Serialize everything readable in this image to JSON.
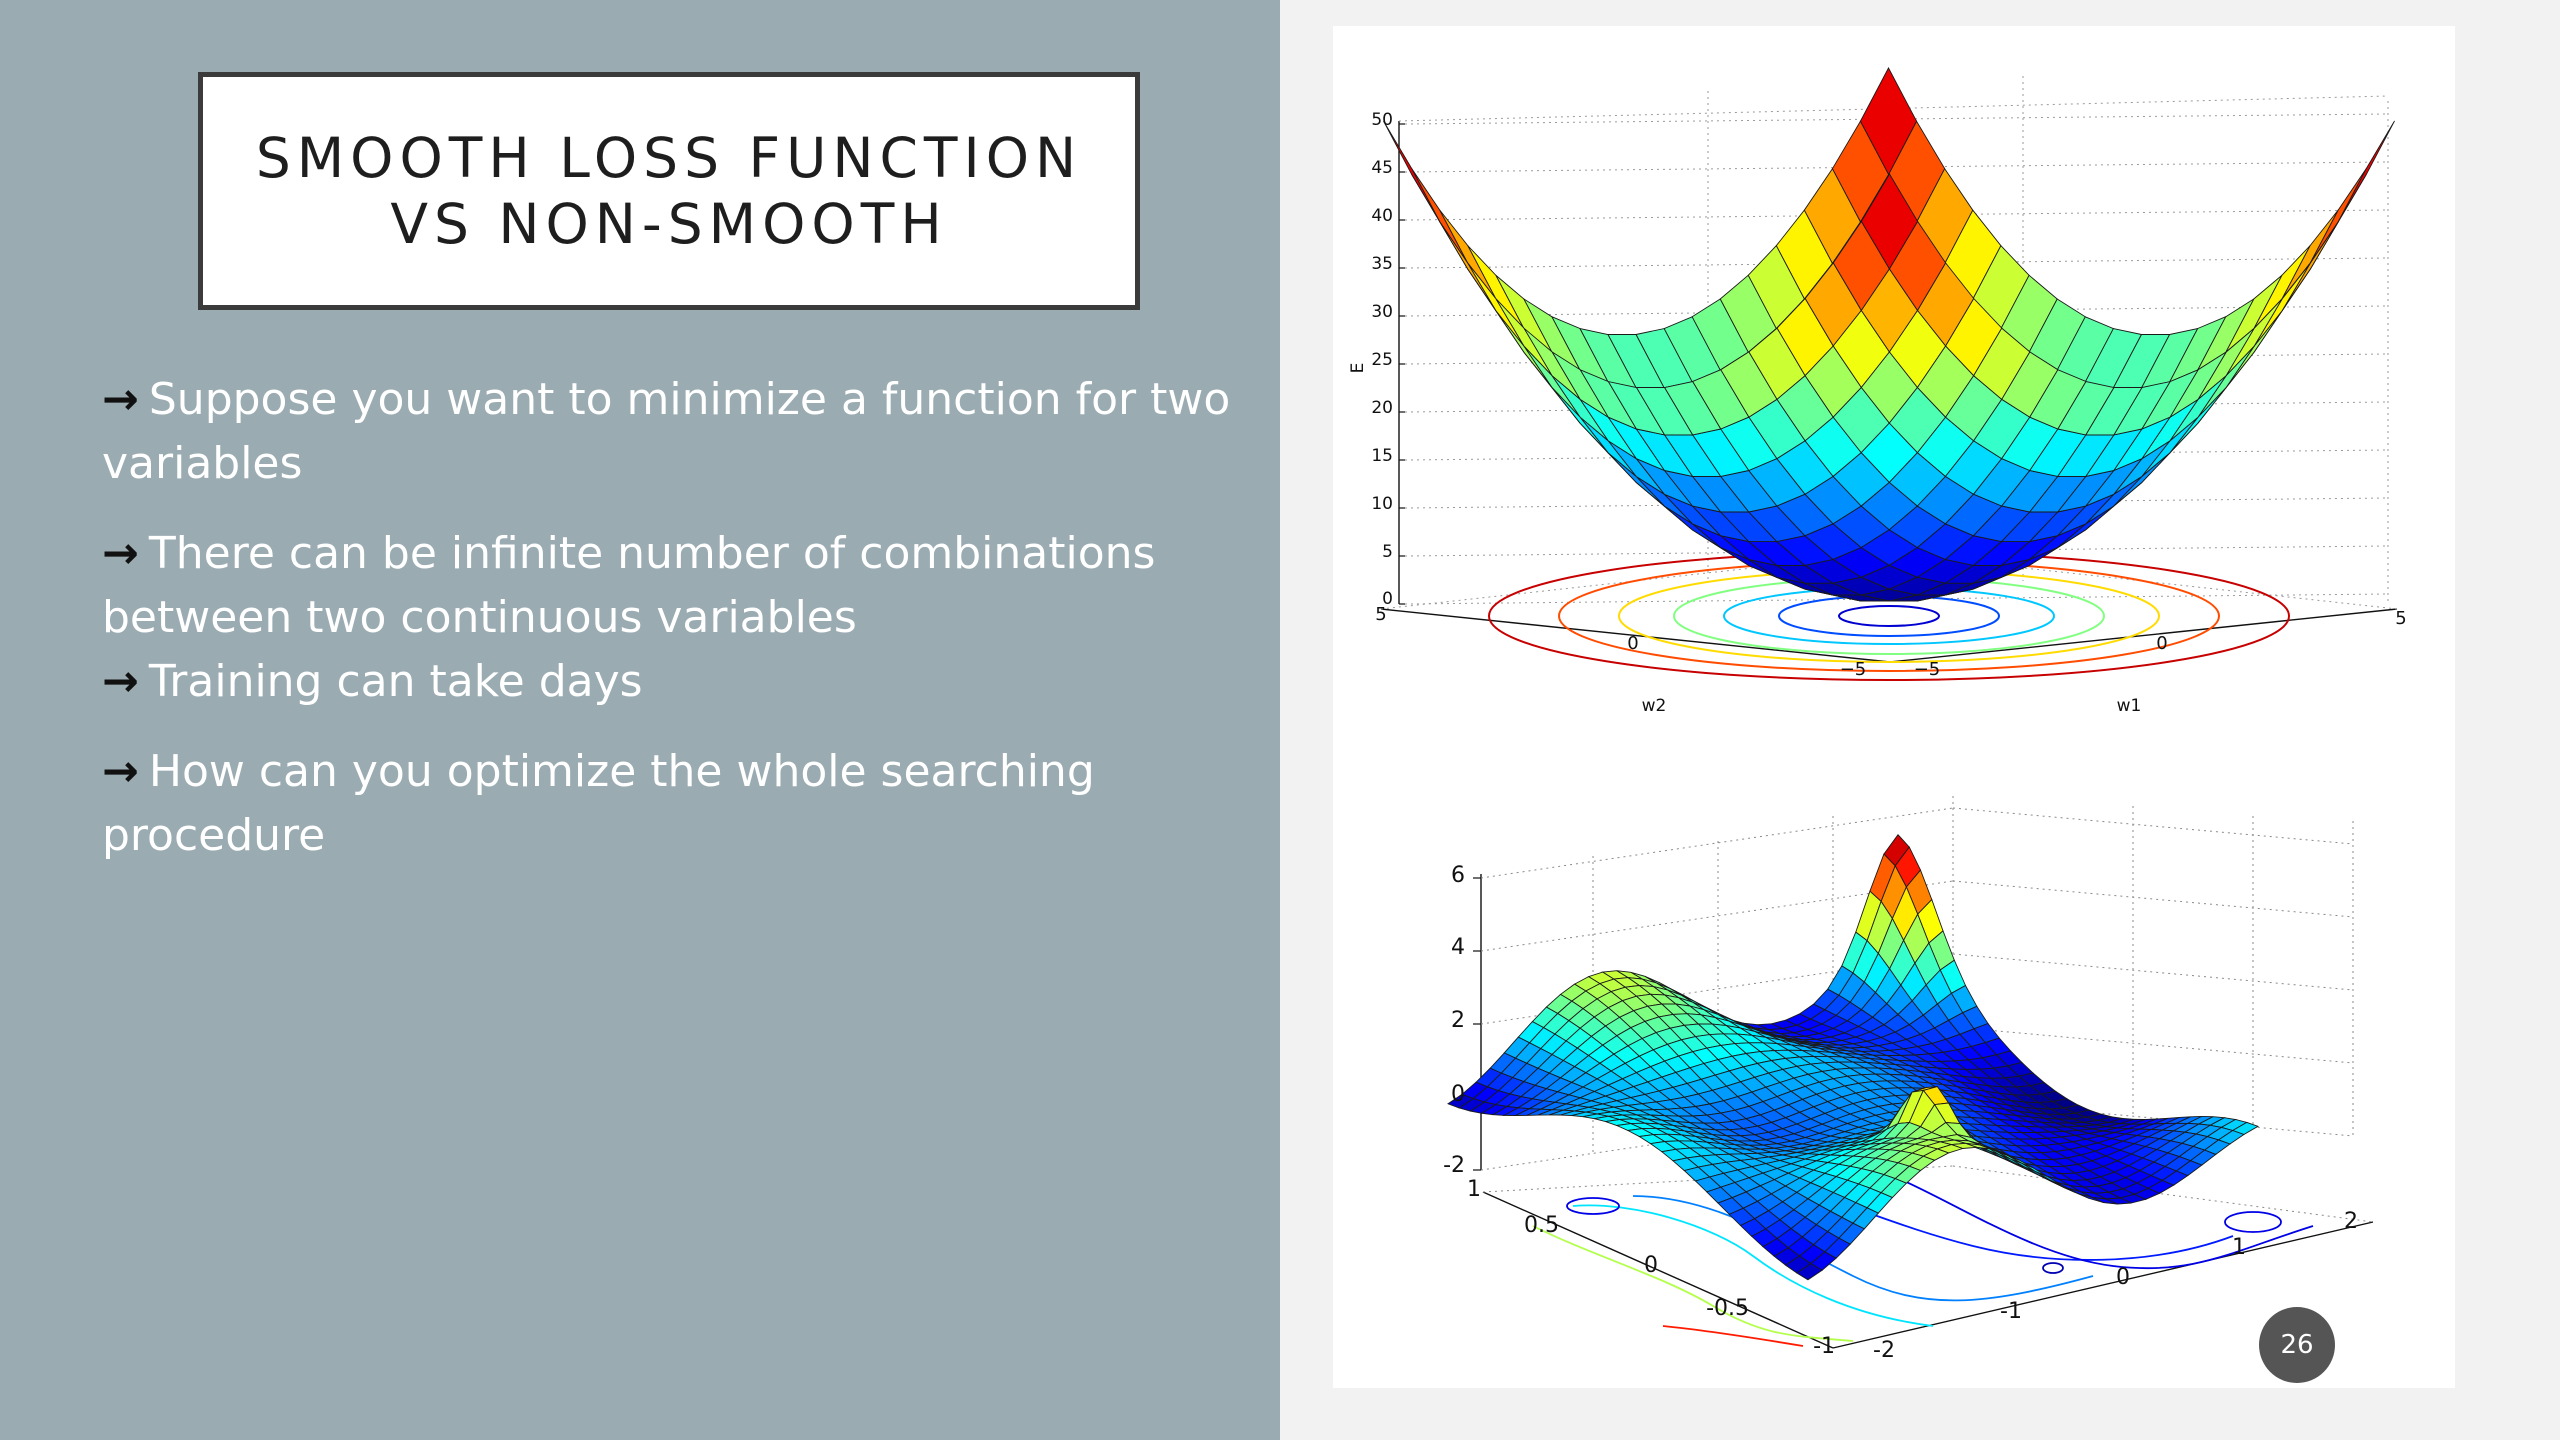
{
  "slide": {
    "title_line1": "SMOOTH LOSS FUNCTION",
    "title_line2": "VS NON-SMOOTH",
    "bullets": [
      {
        "arrow": "→",
        "text": "Suppose you want to minimize a function for two variables"
      },
      {
        "arrow": "→",
        "text": "There can be infinite number of combinations between two continuous variables"
      },
      {
        "arrow": "→",
        "text": "Training can take days"
      },
      {
        "arrow": "→",
        "text": "How can you optimize the whole searching procedure"
      }
    ],
    "page_number": "26"
  },
  "plot_smooth": {
    "z_label": "E",
    "x_label": "w2",
    "y_label": "w1",
    "z_ticks": [
      "0",
      "5",
      "10",
      "15",
      "20",
      "25",
      "30",
      "35",
      "40",
      "45",
      "50"
    ],
    "w2_ticks": [
      "5",
      "0",
      "−5"
    ],
    "w1_ticks": [
      "−5",
      "0",
      "5"
    ]
  },
  "plot_nonsmooth": {
    "z_ticks": [
      "-2",
      "0",
      "2",
      "4",
      "6"
    ],
    "y_ticks": [
      "1",
      "0.5",
      "0",
      "-0.5",
      "-1"
    ],
    "x_ticks": [
      "-2",
      "-1",
      "0",
      "1",
      "2"
    ]
  },
  "colors": {
    "left_panel": "#9aabb1",
    "colormap": "jet"
  }
}
